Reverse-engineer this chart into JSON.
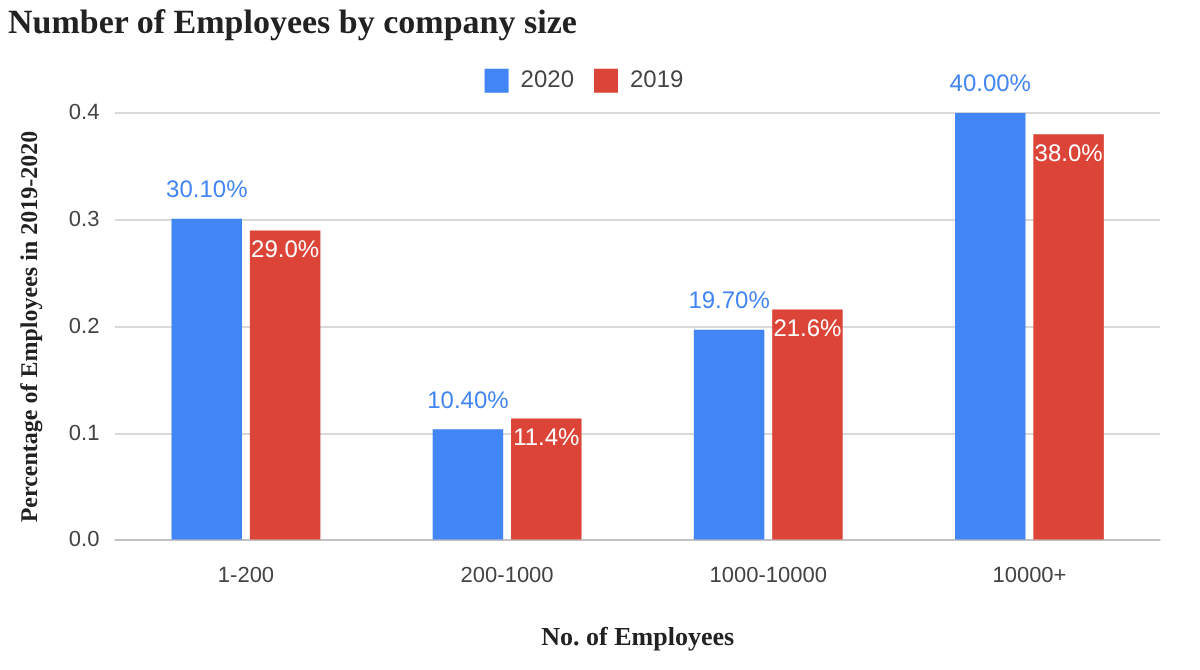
{
  "chart_data": {
    "type": "bar",
    "title": "Number of Employees by company size",
    "xlabel": "No. of Employees",
    "ylabel": "Percentage of Employees in 2019-2020",
    "categories": [
      "1-200",
      "200-1000",
      "1000-10000",
      "10000+"
    ],
    "series": [
      {
        "name": "2020",
        "color": "#4285f4",
        "values": [
          0.301,
          0.104,
          0.197,
          0.4
        ],
        "value_labels": [
          "30.10%",
          "10.40%",
          "19.70%",
          "40.00%"
        ]
      },
      {
        "name": "2019",
        "color": "#db4437",
        "values": [
          0.29,
          0.114,
          0.216,
          0.38
        ],
        "value_labels": [
          "29.0%",
          "11.4%",
          "21.6%",
          "38.0%"
        ]
      }
    ],
    "ylim": [
      0,
      0.4
    ],
    "yticks": [
      {
        "value": 0,
        "label": "0.0"
      },
      {
        "value": 0.1,
        "label": "0.1"
      },
      {
        "value": 0.2,
        "label": "0.2"
      },
      {
        "value": 0.3,
        "label": "0.3"
      },
      {
        "value": 0.4,
        "label": "0.4"
      }
    ],
    "grid": "y",
    "legend": "top"
  }
}
